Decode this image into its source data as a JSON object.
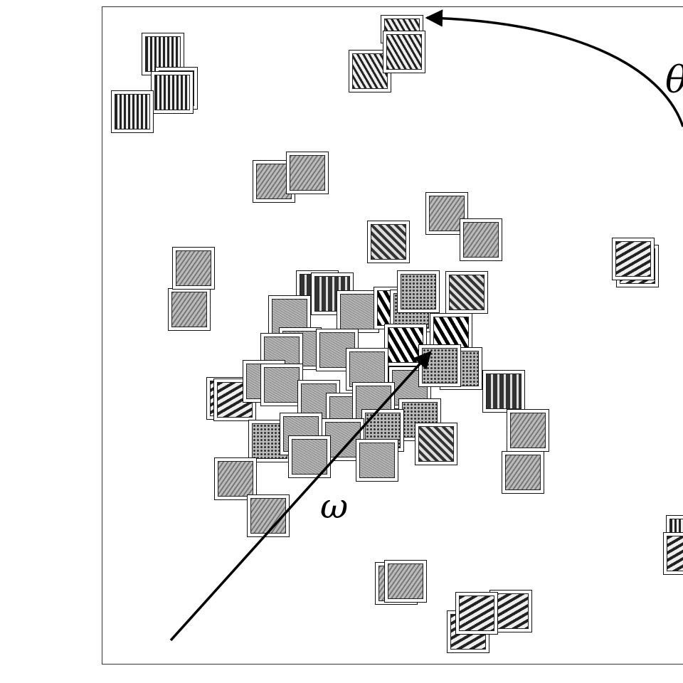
{
  "labels": {
    "omega": "ω",
    "theta": "θ"
  }
}
